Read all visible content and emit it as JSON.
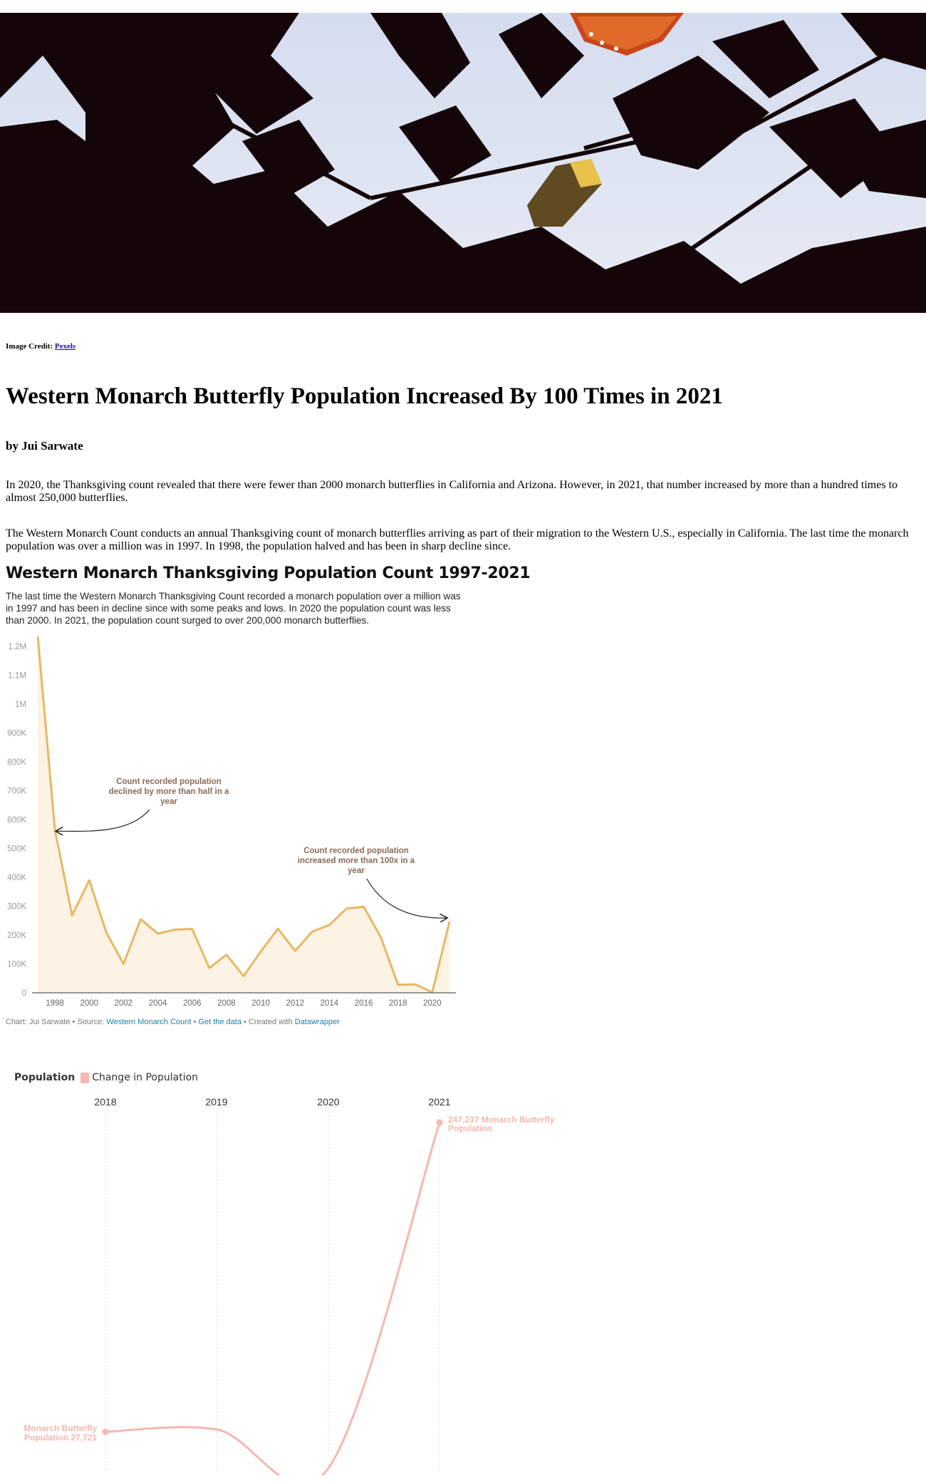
{
  "credit": {
    "label": "Image Credit:",
    "link": "Pexels"
  },
  "article": {
    "title": "Western Monarch Butterfly Population Increased By 100 Times in 2021",
    "byline": "by Jui Sarwate",
    "p1": "In 2020, the Thanksgiving count revealed that there were fewer than 2000 monarch butterflies in California and Arizona. However, in 2021, that number increased by more than a hundred times to almost 250,000 butterflies.",
    "p2": "The Western Monarch Count conducts an annual Thanksgiving count of monarch butterflies arriving as part of their migration to the Western U.S., especially in California. The last time the monarch population was over a million was in 1997. In 1998, the population halved and has been in sharp decline since."
  },
  "chart1_text": {
    "title": "Western Monarch Thanksgiving Population Count 1997-2021",
    "description": "The last time the Western Monarch Thanksgiving Count recorded a monarch population over a million was in 1997 and has been in decline since with some peaks and lows. In 2020 the population count was less than 2000. In 2021, the population count surged to over 200,000 monarch butterflies.",
    "footer": {
      "chart_by": "Chart: Jui Sarwate",
      "sep1": " • Source: ",
      "source": "Western Monarch Count",
      "sep2": " • ",
      "get_data": "Get the data",
      "sep3": " • Created with ",
      "created_with": "Datawrapper"
    }
  },
  "chart2_text": {
    "legend_population": "Population",
    "legend_change": "Change in Population"
  },
  "colors": {
    "line1": "#e8b764",
    "area1": "#fdf3e4",
    "annotation": "#8a6a55",
    "line2": "#f5b7b1",
    "link": "#1d81a2"
  },
  "chart_data": [
    {
      "type": "area",
      "x": [
        1997,
        1998,
        1999,
        2000,
        2001,
        2002,
        2003,
        2004,
        2005,
        2006,
        2007,
        2008,
        2009,
        2010,
        2011,
        2012,
        2013,
        2014,
        2015,
        2016,
        2017,
        2018,
        2019,
        2020,
        2021
      ],
      "values": [
        1235000,
        565000,
        268000,
        390000,
        209000,
        100000,
        255000,
        205000,
        219000,
        221000,
        86000,
        132000,
        58000,
        143000,
        222000,
        145000,
        212000,
        235000,
        292000,
        298000,
        192000,
        27721,
        29418,
        1914,
        247237
      ],
      "x_ticks": [
        "1998",
        "2000",
        "2002",
        "2004",
        "2006",
        "2008",
        "2010",
        "2012",
        "2014",
        "2016",
        "2018",
        "2020"
      ],
      "y_ticks": [
        "0",
        "100K",
        "200K",
        "300K",
        "400K",
        "500K",
        "600K",
        "700K",
        "800K",
        "900K",
        "1M",
        "1.1M",
        "1.2M"
      ],
      "ylim": [
        0,
        1235000
      ],
      "grid": false,
      "annotations": [
        {
          "text": "Count recorded population declined by more than half in a year",
          "lines": [
            "Count recorded population",
            "declined by more than half in a",
            "year"
          ],
          "target_x": 1998
        },
        {
          "text": "Count recorded population increased more than 100x in a year",
          "lines": [
            "Count recorded population",
            "increased more than 100x in a",
            "year"
          ],
          "target_x": 2021
        }
      ]
    },
    {
      "type": "line",
      "categories": [
        "2018",
        "2019",
        "2020",
        "2021"
      ],
      "series": [
        {
          "name": "Change in Population",
          "values": [
            27721,
            29418,
            1914,
            247237
          ]
        }
      ],
      "labels": [
        {
          "lines": [
            "Monarch Butterfly",
            "Population 27,721"
          ],
          "category": "2018"
        },
        {
          "lines": [
            "247,237 Monarch Butterfly",
            "Population"
          ],
          "category": "2021"
        }
      ],
      "legend": "top-left"
    }
  ]
}
